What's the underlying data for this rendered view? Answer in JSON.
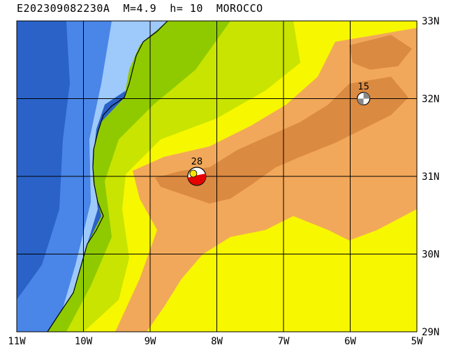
{
  "title": "E202309082230A  M=4.9  h= 10  MOROCCO",
  "map": {
    "lon_range": [
      -11,
      -5
    ],
    "lat_range": [
      29,
      33
    ],
    "lon_ticks": [
      "11W",
      "10W",
      "9W",
      "8W",
      "7W",
      "6W",
      "5W"
    ],
    "lat_ticks": [
      "33N",
      "32N",
      "31N",
      "30N",
      "29N"
    ],
    "colors": {
      "ocean_deep": "#2a62c8",
      "ocean_mid": "#4a86e8",
      "ocean_shallow": "#9ec9fb",
      "land_low": "#8fca00",
      "land_lowmid": "#c8e400",
      "land_mid": "#f7f700",
      "land_high": "#f2a85a",
      "land_peak": "#db8a42"
    }
  },
  "events": [
    {
      "label": "28",
      "lon": -8.3,
      "lat": 31.0,
      "style": "red-yellow-beachball"
    },
    {
      "label": "15",
      "lon": -5.8,
      "lat": 32.0,
      "style": "gray-beachball"
    }
  ]
}
